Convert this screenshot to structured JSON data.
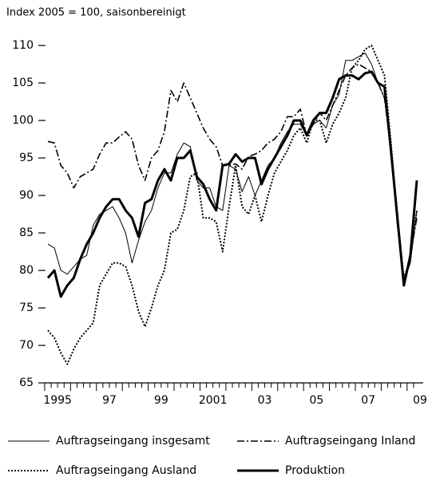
{
  "chart_data": {
    "type": "line",
    "title": "Index 2005 = 100, saisonbereinigt",
    "categories": [
      null,
      "1995",
      null,
      null,
      null,
      null,
      null,
      null,
      null,
      "97",
      null,
      null,
      null,
      null,
      null,
      null,
      null,
      "99",
      null,
      null,
      null,
      null,
      null,
      null,
      null,
      "2001",
      null,
      null,
      null,
      null,
      null,
      null,
      null,
      "03",
      null,
      null,
      null,
      null,
      null,
      null,
      null,
      "05",
      null,
      null,
      null,
      null,
      null,
      null,
      null,
      "07",
      null,
      null,
      null,
      null,
      null,
      null,
      null,
      "09"
    ],
    "ylim": [
      65,
      110
    ],
    "yticks": [
      65,
      70,
      75,
      80,
      85,
      90,
      95,
      100,
      105,
      110
    ],
    "series": [
      {
        "name": "Auftragseingang insgesamt",
        "color": "#000000",
        "style": "solid",
        "width": 1,
        "values": [
          83.5,
          83,
          80,
          79.5,
          80.5,
          81.5,
          82,
          86,
          87.5,
          88,
          88.5,
          87,
          85,
          81,
          84,
          86.5,
          88,
          91,
          93,
          93,
          95.5,
          97,
          96.5,
          92,
          91,
          91,
          88.5,
          88,
          94,
          93.5,
          90.5,
          92.5,
          90,
          92,
          94,
          95,
          97,
          98.5,
          99.5,
          99.5,
          98,
          99.5,
          100,
          99,
          102,
          103.5,
          108,
          108,
          108.5,
          109,
          107.5,
          105,
          103,
          96,
          86,
          78.5,
          81,
          88
        ]
      },
      {
        "name": "Auftragseingang Inland",
        "color": "#000000",
        "style": "dashdot",
        "width": 1.6,
        "values": [
          97.2,
          97,
          94,
          93,
          91,
          92.5,
          93,
          93.5,
          95.5,
          97,
          97,
          97.8,
          98.5,
          97.5,
          94,
          92,
          95,
          96,
          98.5,
          104,
          102.5,
          105,
          103,
          101,
          99,
          97.5,
          96.5,
          94,
          94,
          94.2,
          93.5,
          95.2,
          95.5,
          96,
          97,
          97.5,
          98.5,
          100.5,
          100.5,
          101.5,
          98,
          99.5,
          101,
          100,
          102,
          104,
          106,
          107,
          107.5,
          107,
          106.5,
          105,
          103,
          96,
          86,
          78.5,
          82,
          87
        ]
      },
      {
        "name": "Auftragseingang Ausland",
        "color": "#000000",
        "style": "dotted",
        "width": 2,
        "values": [
          72,
          71,
          69,
          67.5,
          69.5,
          71,
          72,
          73,
          78,
          79.5,
          81,
          81,
          80.5,
          78,
          74.5,
          72.5,
          75,
          78,
          80,
          85,
          85.5,
          88,
          92.5,
          93,
          87,
          87,
          86.5,
          82.5,
          88.5,
          94,
          88.5,
          87.5,
          90,
          86.5,
          90,
          93,
          94.5,
          96,
          98,
          99,
          97,
          100,
          100,
          97,
          99.5,
          101,
          103,
          107,
          108,
          109.5,
          110,
          108,
          106,
          97,
          87,
          79,
          81.5,
          88
        ]
      },
      {
        "name": "Produktion",
        "color": "#000000",
        "style": "solid",
        "width": 3,
        "values": [
          79,
          80,
          76.5,
          78,
          79,
          81.5,
          83.5,
          85,
          87,
          88.5,
          89.5,
          89.5,
          88,
          87,
          84.5,
          89,
          89.5,
          92,
          93.5,
          92,
          95,
          95,
          96,
          92.5,
          91.5,
          89.5,
          88,
          94,
          94.2,
          95.5,
          94.5,
          95,
          95,
          91.5,
          93.5,
          95,
          96.5,
          98,
          100,
          100,
          98,
          100,
          101,
          101,
          103,
          105.5,
          106,
          106,
          105.5,
          106.3,
          106.5,
          105,
          104.5,
          96,
          87,
          78,
          82,
          92
        ]
      }
    ]
  }
}
